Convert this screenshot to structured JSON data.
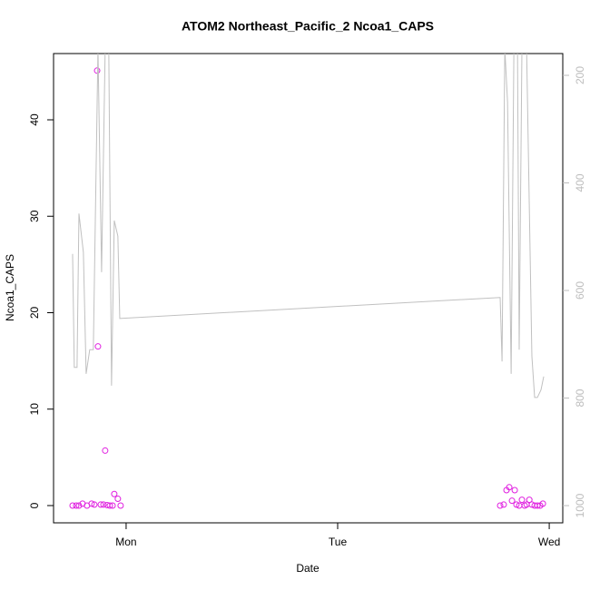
{
  "chart_data": {
    "type": "scatter",
    "title": "ATOM2 Northeast_Pacific_2 Ncoa1_CAPS",
    "xlabel": "Date",
    "ylabel": "Ncoa1_CAPS",
    "xlim": [
      -0.343,
      2.064
    ],
    "xticks": [
      {
        "value": 0,
        "label": "Mon"
      },
      {
        "value": 1,
        "label": "Tue"
      },
      {
        "value": 2,
        "label": "Wed"
      }
    ],
    "ylim": [
      -1.79,
      46.87
    ],
    "yticks": [
      0,
      10,
      20,
      30,
      40
    ],
    "y2lim": [
      1032,
      159.5
    ],
    "y2ticks": [
      200,
      400,
      600,
      800,
      1000
    ],
    "y2color": "#bdbdbd",
    "series": [
      {
        "mode": "points",
        "color": "#e020e0",
        "x": [
          -0.253,
          -0.236,
          -0.223,
          -0.206,
          -0.185,
          -0.163,
          -0.15,
          -0.137,
          -0.133,
          -0.12,
          -0.107,
          -0.099,
          -0.09,
          -0.077,
          -0.064,
          -0.056,
          -0.039,
          -0.026,
          1.768,
          1.785,
          1.798,
          1.811,
          1.824,
          1.837,
          1.845,
          1.858,
          1.871,
          1.884,
          1.893,
          1.906,
          1.918,
          1.931,
          1.944,
          1.957,
          1.97
        ],
        "values": [
          0,
          0,
          0,
          0.2,
          0,
          0.2,
          0.1,
          45.1,
          16.5,
          0.1,
          0.1,
          5.7,
          0.05,
          0,
          0,
          1.2,
          0.7,
          0,
          0,
          0.1,
          1.6,
          1.9,
          0.5,
          1.6,
          0.1,
          0,
          0.6,
          0,
          0.1,
          0.6,
          0.1,
          0,
          0,
          0,
          0.2
        ]
      },
      {
        "mode": "line",
        "color": "#c0c0c0",
        "axis": "y2",
        "x": [
          -0.253,
          -0.245,
          -0.232,
          -0.223,
          -0.202,
          -0.189,
          -0.172,
          -0.155,
          -0.133,
          -0.116,
          -0.099,
          -0.082,
          -0.069,
          -0.056,
          -0.039,
          -0.03,
          1.768,
          1.777,
          1.79,
          1.803,
          1.82,
          1.833,
          1.85,
          1.858,
          1.871,
          1.893,
          1.918,
          1.931,
          1.944,
          1.961,
          1.974
        ],
        "values": [
          532,
          743,
          743,
          457,
          529,
          755,
          710,
          710,
          150,
          566,
          150,
          150,
          777,
          470,
          499,
          652,
          613,
          732,
          150,
          250,
          755,
          150,
          150,
          710,
          150,
          150,
          722,
          799,
          799,
          785,
          760
        ]
      }
    ]
  }
}
